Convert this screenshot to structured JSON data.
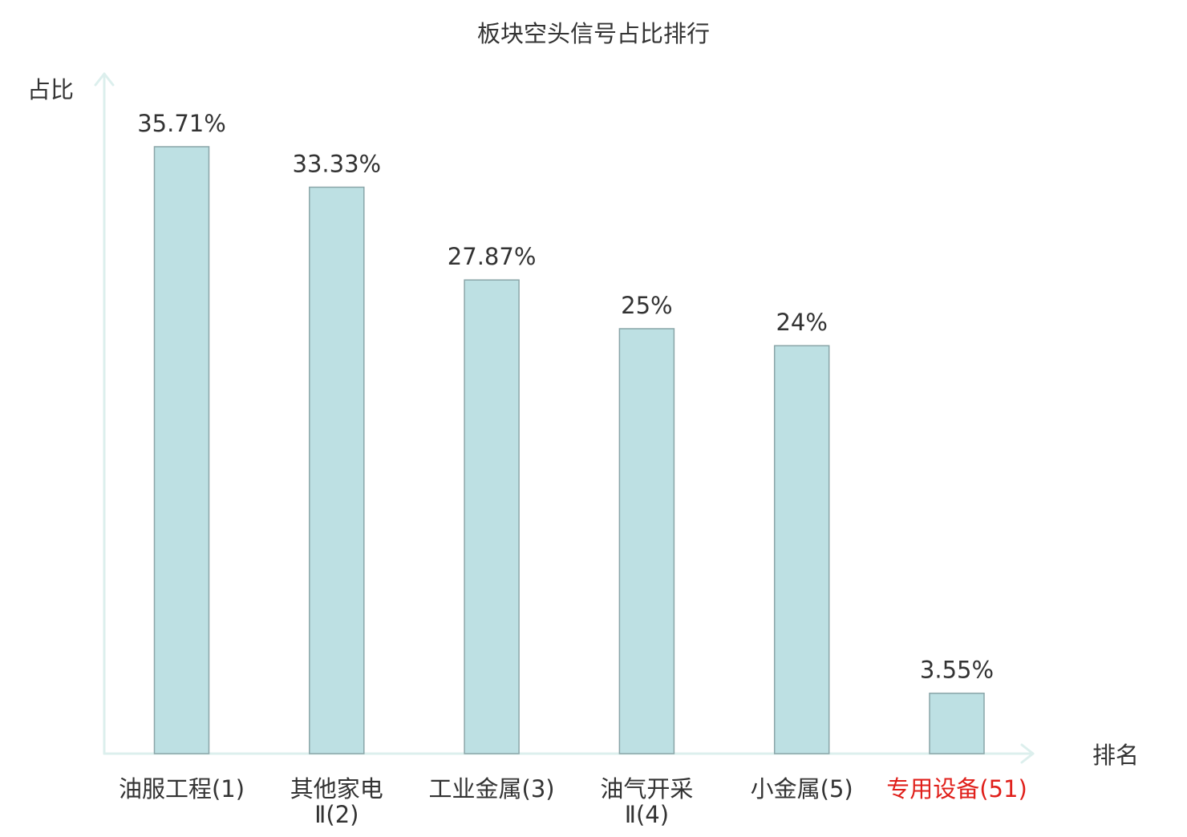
{
  "chart_data": {
    "type": "bar",
    "title": "板块空头信号占比排行",
    "ylabel": "占比",
    "xlabel": "排名",
    "categories": [
      [
        "油服工程(1)"
      ],
      [
        "其他家电",
        "Ⅱ(2)"
      ],
      [
        "工业金属(3)"
      ],
      [
        "油气开采",
        "Ⅱ(4)"
      ],
      [
        "小金属(5)"
      ],
      [
        "专用设备(51)"
      ]
    ],
    "values": [
      35.71,
      33.33,
      27.87,
      25,
      24,
      3.55
    ],
    "value_labels": [
      "35.71%",
      "33.33%",
      "27.87%",
      "25%",
      "24%",
      "3.55%"
    ],
    "highlight_index": 5,
    "ylim": [
      0,
      38
    ],
    "grid": false,
    "colors": {
      "bar_fill": "#bde0e3",
      "bar_stroke": "#8aa5a8",
      "axis": "#dcefed",
      "text": "#333333",
      "highlight_text": "#e0201b"
    }
  }
}
